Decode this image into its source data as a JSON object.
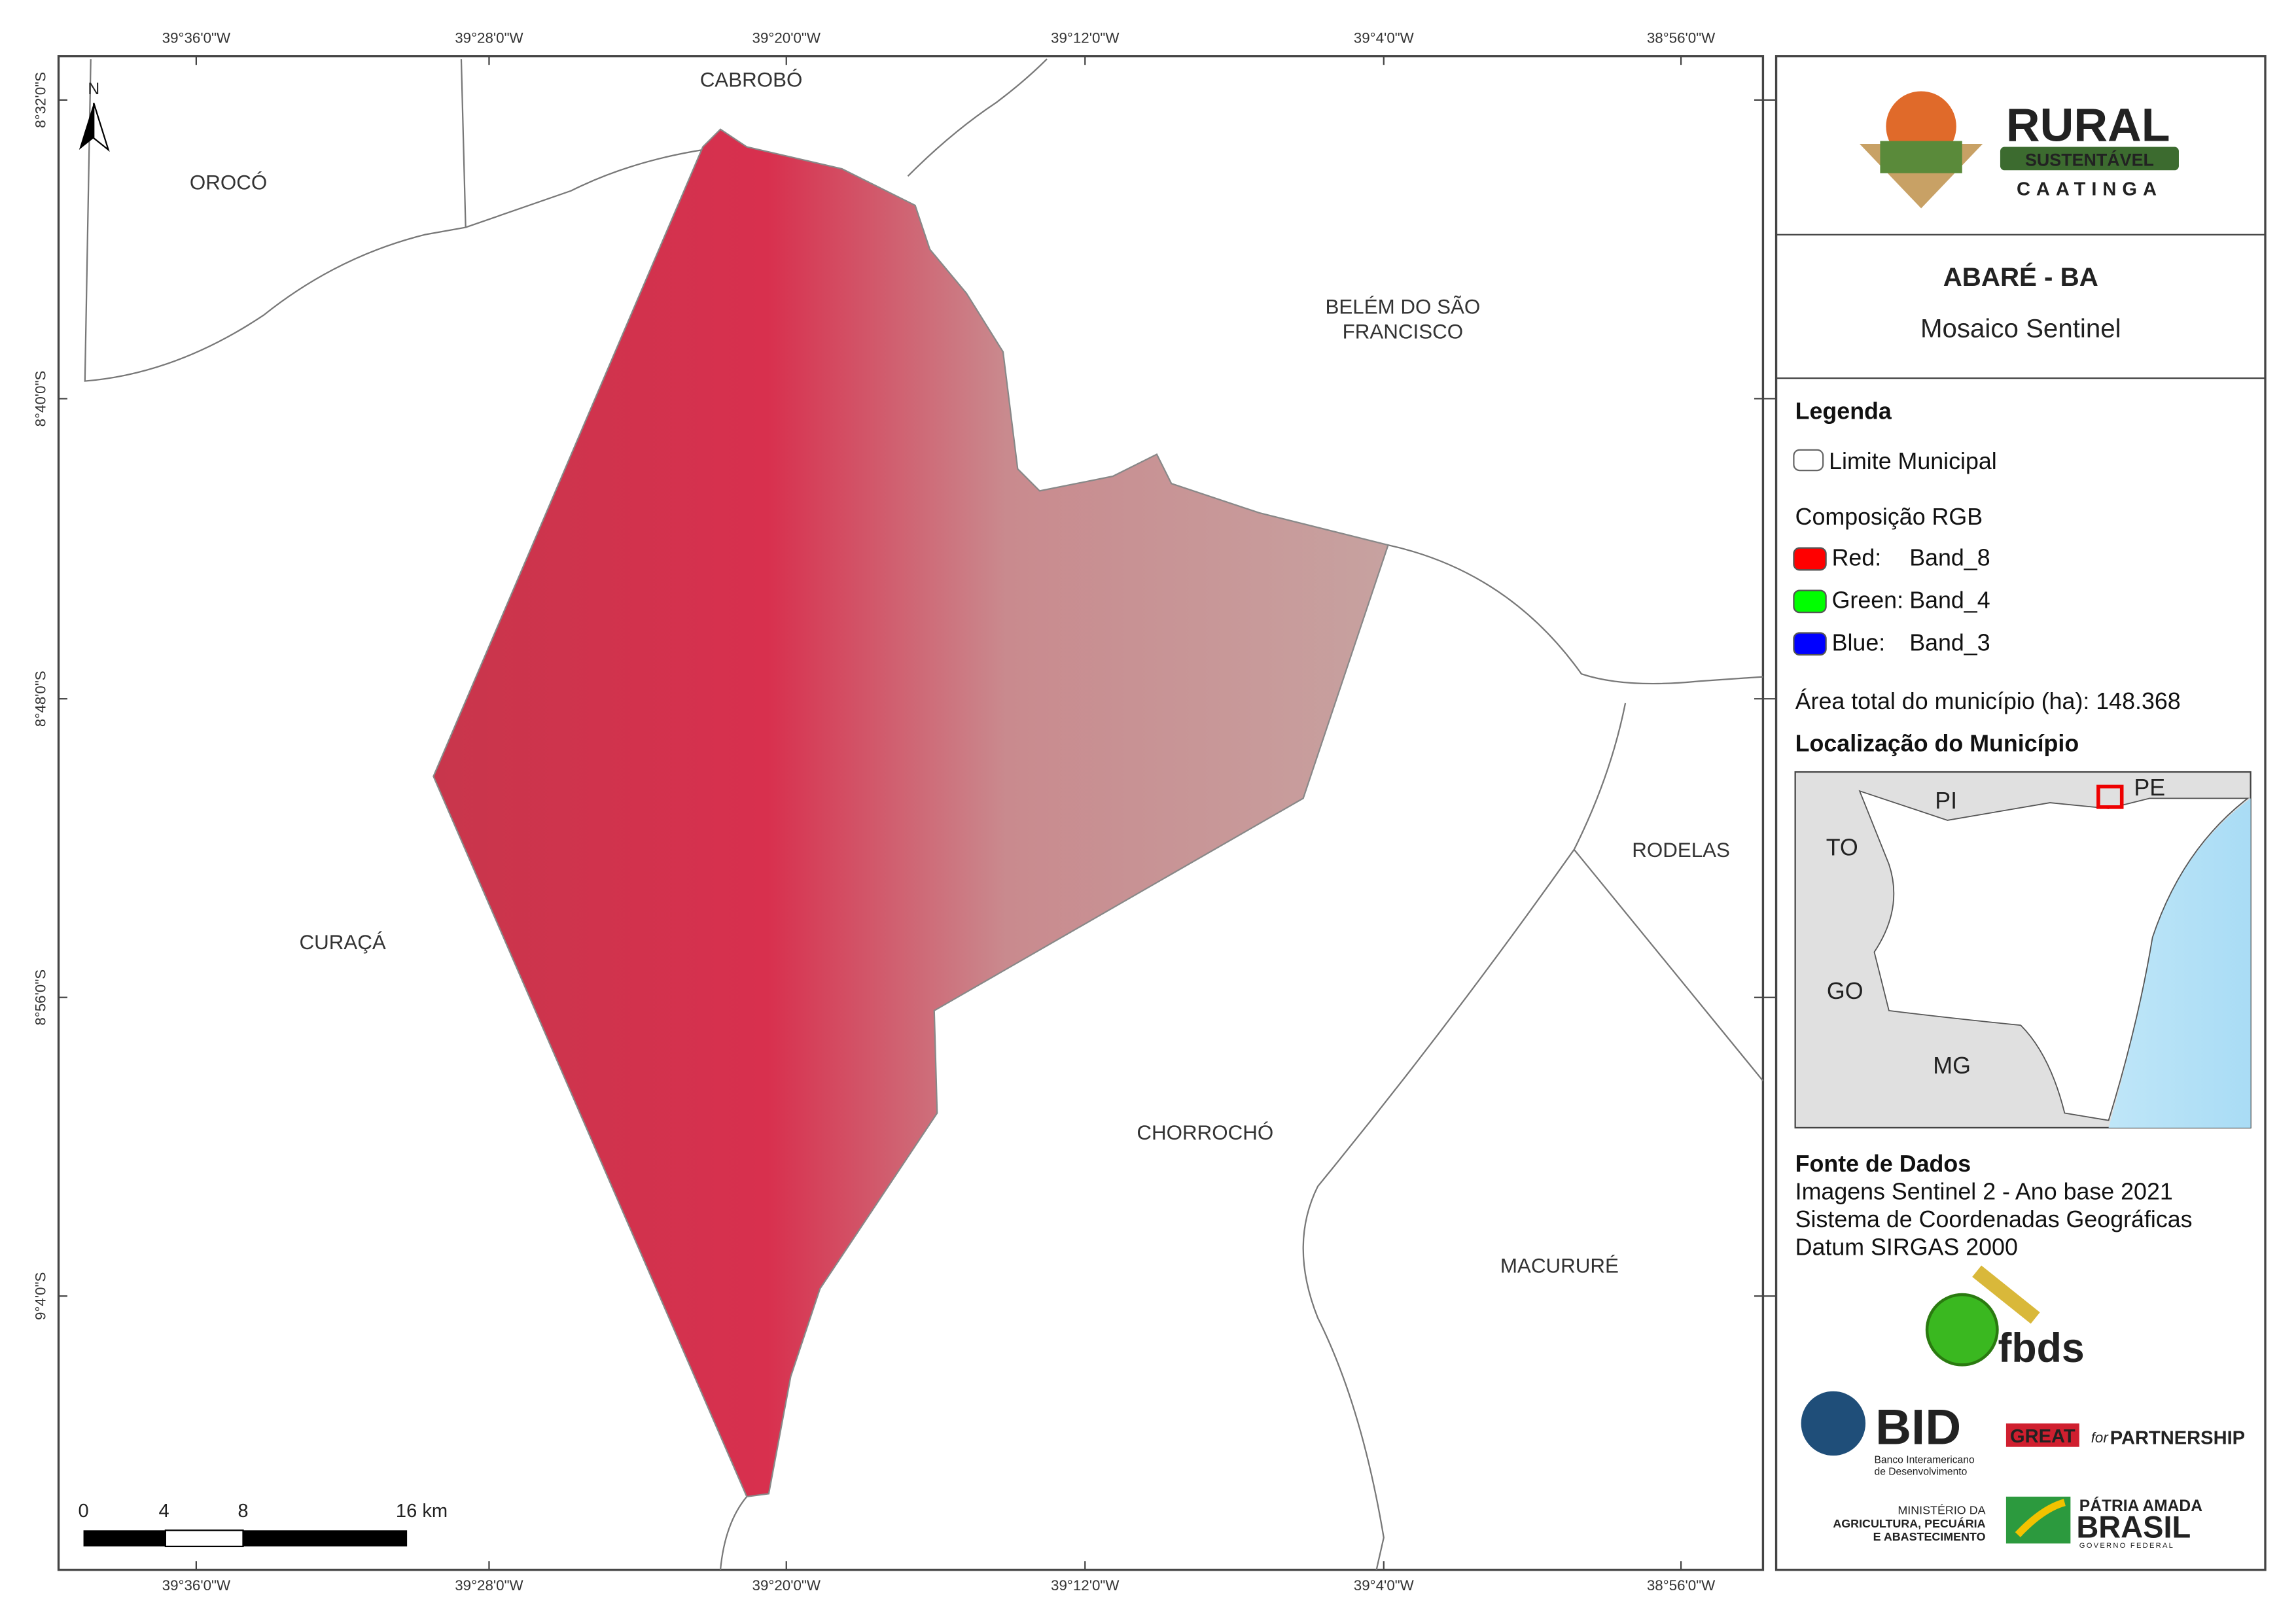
{
  "map": {
    "lon_labels": [
      "39°36'0\"W",
      "39°28'0\"W",
      "39°20'0\"W",
      "39°12'0\"W",
      "39°4'0\"W",
      "38°56'0\"W"
    ],
    "lat_labels": [
      "8°32'0\"S",
      "8°40'0\"S",
      "8°48'0\"S",
      "8°56'0\"S",
      "9°4'0\"S"
    ],
    "north": "N",
    "municipalities": [
      {
        "lines": [
          "CABROBÓ"
        ]
      },
      {
        "lines": [
          "OROCÓ"
        ]
      },
      {
        "lines": [
          "BELÉM DO SÃO",
          "FRANCISCO"
        ]
      },
      {
        "lines": [
          "RODELAS"
        ]
      },
      {
        "lines": [
          "CURAÇÁ"
        ]
      },
      {
        "lines": [
          "CHORROCHÓ"
        ]
      },
      {
        "lines": [
          "MACURURÉ"
        ]
      }
    ],
    "scale_labels": [
      "0",
      "4",
      "8",
      "16 km"
    ]
  },
  "panel": {
    "logo": {
      "word": "RURAL",
      "ribbon": "SUSTENTÁVEL",
      "sub": "CAATINGA"
    },
    "title": "ABARÉ - BA",
    "subtitle": "Mosaico Sentinel",
    "legend_title": "Legenda",
    "limit": "Limite Municipal",
    "rgb_title": "Composição RGB",
    "bands": [
      {
        "label": "Red:",
        "band": "Band_8",
        "color": "#ff0000"
      },
      {
        "label": "Green:",
        "band": "Band_4",
        "color": "#00ff00"
      },
      {
        "label": "Blue:",
        "band": "Band_3",
        "color": "#0000ff"
      }
    ],
    "area": "Área total do município (ha): 148.368",
    "location_title": "Localização do Município",
    "location_labels": [
      "PI",
      "PE",
      "TO",
      "GO",
      "MG"
    ],
    "sources_title": "Fonte de Dados",
    "sources": [
      "Imagens Sentinel 2 - Ano base 2021",
      "Sistema de Coordenadas Geográficas",
      "Datum SIRGAS 2000"
    ],
    "fbds": "fbds",
    "bid": "BID",
    "bid_sub": [
      "Banco Interamericano",
      "de Desenvolvimento"
    ],
    "great": [
      "GREAT",
      "for",
      "PARTNERSHIP"
    ],
    "ministry": [
      "MINISTÉRIO DA",
      "AGRICULTURA, PECUÁRIA",
      "E ABASTECIMENTO"
    ],
    "brasil": [
      "PÁTRIA AMADA",
      "BRASIL",
      "GOVERNO FEDERAL"
    ]
  }
}
